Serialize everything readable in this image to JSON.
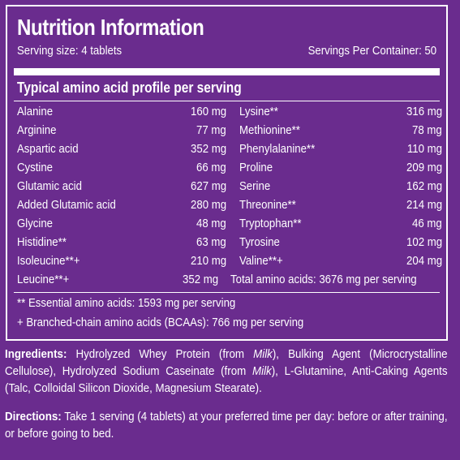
{
  "title": "Nutrition Information",
  "serving_size": "Serving size: 4 tablets",
  "servings_per_container": "Servings Per Container: 50",
  "section_heading": "Typical amino acid profile per serving",
  "rows": [
    {
      "name": "Alanine",
      "value": "160 mg",
      "name2": "Lysine**",
      "value2": "316 mg"
    },
    {
      "name": "Arginine",
      "value": "77 mg",
      "name2": "Methionine**",
      "value2": "78 mg"
    },
    {
      "name": "Aspartic acid",
      "value": "352 mg",
      "name2": "Phenylalanine**",
      "value2": "110 mg"
    },
    {
      "name": "Cystine",
      "value": "66 mg",
      "name2": "Proline",
      "value2": "209 mg"
    },
    {
      "name": "Glutamic acid",
      "value": "627 mg",
      "name2": "Serine",
      "value2": "162 mg"
    },
    {
      "name": "Added Glutamic acid",
      "value": "280 mg",
      "name2": "Threonine**",
      "value2": "214 mg"
    },
    {
      "name": "Glycine",
      "value": "48 mg",
      "name2": "Tryptophan**",
      "value2": "46 mg"
    },
    {
      "name": "Histidine**",
      "value": "63 mg",
      "name2": "Tyrosine",
      "value2": "102 mg"
    },
    {
      "name": "Isoleucine**+",
      "value": "210 mg",
      "name2": "Valine**+",
      "value2": "204 mg"
    }
  ],
  "last_row": {
    "name": "Leucine**+",
    "value": "352 mg",
    "total": "Total amino acids: 3676 mg per serving"
  },
  "footnote_essential": "** Essential amino acids: 1593 mg per serving",
  "footnote_bcaa": "+ Branched-chain amino acids (BCAAs): 766 mg per serving",
  "ingredients": {
    "label": "Ingredients:",
    "part1": " Hydrolyzed Whey Protein (from ",
    "milk1": "Milk",
    "part2": "), Bulking Agent (Microcrystalline Cellulose), Hydrolyzed Sodium Caseinate (from ",
    "milk2": "Milk",
    "part3": "), L-Glutamine, Anti-Caking Agents (Talc, Colloidal Silicon Dioxide, Magnesium Stearate)."
  },
  "directions": {
    "label": "Directions:",
    "text": " Take 1 serving (4 tablets) at your preferred time per day: before or after training, or before going to bed."
  },
  "colors": {
    "background": "#6a2c8e",
    "text": "#ffffff"
  }
}
